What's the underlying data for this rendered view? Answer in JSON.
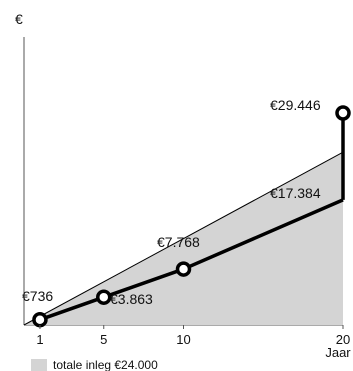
{
  "chart_data": {
    "type": "line",
    "title": "",
    "xlabel": "Jaar",
    "ylabel": "€",
    "x_ticks": [
      1,
      5,
      10,
      20
    ],
    "xlim": [
      0,
      20
    ],
    "ylim": [
      0,
      29446
    ],
    "series": [
      {
        "role": "value-line",
        "points": [
          {
            "x": 1,
            "y": 736,
            "label": "€736"
          },
          {
            "x": 5,
            "y": 3863,
            "label": "€3.863"
          },
          {
            "x": 10,
            "y": 7768,
            "label": "€7.768"
          },
          {
            "x": 20,
            "y": 17384,
            "label": "€17.384"
          }
        ]
      },
      {
        "role": "jump",
        "points": [
          {
            "x": 20,
            "y": 17384
          },
          {
            "x": 20,
            "y": 29446,
            "label": "€29.446"
          }
        ]
      }
    ],
    "area": {
      "label": "totale inleg €24.000",
      "x": [
        0,
        20
      ],
      "y": [
        0,
        24000
      ]
    },
    "markers_at_x": [
      1,
      5,
      10,
      20
    ],
    "grid": false,
    "legend_position": "bottom-left",
    "colors": {
      "line": "#000000",
      "area": "#d4d4d4",
      "area_edge": "#000000",
      "marker_fill": "#ffffff"
    }
  }
}
